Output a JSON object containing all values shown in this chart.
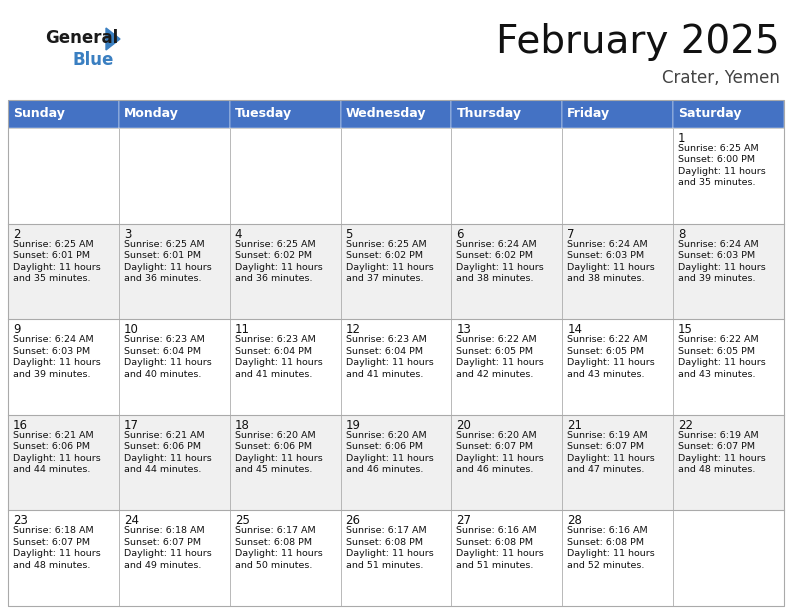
{
  "title": "February 2025",
  "subtitle": "Crater, Yemen",
  "header_color": "#4472C4",
  "header_text_color": "#FFFFFF",
  "background_color": "#FFFFFF",
  "alt_row_color": "#F0F0F0",
  "white_row_color": "#FFFFFF",
  "border_color": "#AAAAAA",
  "days_of_week": [
    "Sunday",
    "Monday",
    "Tuesday",
    "Wednesday",
    "Thursday",
    "Friday",
    "Saturday"
  ],
  "cell_data": [
    [
      "",
      "",
      "",
      "",
      "",
      "",
      "1\nSunrise: 6:25 AM\nSunset: 6:00 PM\nDaylight: 11 hours\nand 35 minutes."
    ],
    [
      "2\nSunrise: 6:25 AM\nSunset: 6:01 PM\nDaylight: 11 hours\nand 35 minutes.",
      "3\nSunrise: 6:25 AM\nSunset: 6:01 PM\nDaylight: 11 hours\nand 36 minutes.",
      "4\nSunrise: 6:25 AM\nSunset: 6:02 PM\nDaylight: 11 hours\nand 36 minutes.",
      "5\nSunrise: 6:25 AM\nSunset: 6:02 PM\nDaylight: 11 hours\nand 37 minutes.",
      "6\nSunrise: 6:24 AM\nSunset: 6:02 PM\nDaylight: 11 hours\nand 38 minutes.",
      "7\nSunrise: 6:24 AM\nSunset: 6:03 PM\nDaylight: 11 hours\nand 38 minutes.",
      "8\nSunrise: 6:24 AM\nSunset: 6:03 PM\nDaylight: 11 hours\nand 39 minutes."
    ],
    [
      "9\nSunrise: 6:24 AM\nSunset: 6:03 PM\nDaylight: 11 hours\nand 39 minutes.",
      "10\nSunrise: 6:23 AM\nSunset: 6:04 PM\nDaylight: 11 hours\nand 40 minutes.",
      "11\nSunrise: 6:23 AM\nSunset: 6:04 PM\nDaylight: 11 hours\nand 41 minutes.",
      "12\nSunrise: 6:23 AM\nSunset: 6:04 PM\nDaylight: 11 hours\nand 41 minutes.",
      "13\nSunrise: 6:22 AM\nSunset: 6:05 PM\nDaylight: 11 hours\nand 42 minutes.",
      "14\nSunrise: 6:22 AM\nSunset: 6:05 PM\nDaylight: 11 hours\nand 43 minutes.",
      "15\nSunrise: 6:22 AM\nSunset: 6:05 PM\nDaylight: 11 hours\nand 43 minutes."
    ],
    [
      "16\nSunrise: 6:21 AM\nSunset: 6:06 PM\nDaylight: 11 hours\nand 44 minutes.",
      "17\nSunrise: 6:21 AM\nSunset: 6:06 PM\nDaylight: 11 hours\nand 44 minutes.",
      "18\nSunrise: 6:20 AM\nSunset: 6:06 PM\nDaylight: 11 hours\nand 45 minutes.",
      "19\nSunrise: 6:20 AM\nSunset: 6:06 PM\nDaylight: 11 hours\nand 46 minutes.",
      "20\nSunrise: 6:20 AM\nSunset: 6:07 PM\nDaylight: 11 hours\nand 46 minutes.",
      "21\nSunrise: 6:19 AM\nSunset: 6:07 PM\nDaylight: 11 hours\nand 47 minutes.",
      "22\nSunrise: 6:19 AM\nSunset: 6:07 PM\nDaylight: 11 hours\nand 48 minutes."
    ],
    [
      "23\nSunrise: 6:18 AM\nSunset: 6:07 PM\nDaylight: 11 hours\nand 48 minutes.",
      "24\nSunrise: 6:18 AM\nSunset: 6:07 PM\nDaylight: 11 hours\nand 49 minutes.",
      "25\nSunrise: 6:17 AM\nSunset: 6:08 PM\nDaylight: 11 hours\nand 50 minutes.",
      "26\nSunrise: 6:17 AM\nSunset: 6:08 PM\nDaylight: 11 hours\nand 51 minutes.",
      "27\nSunrise: 6:16 AM\nSunset: 6:08 PM\nDaylight: 11 hours\nand 51 minutes.",
      "28\nSunrise: 6:16 AM\nSunset: 6:08 PM\nDaylight: 11 hours\nand 52 minutes.",
      ""
    ]
  ],
  "logo_color_general": "#1A1A1A",
  "logo_color_blue": "#3A7FC1",
  "title_fontsize": 28,
  "subtitle_fontsize": 12,
  "header_fontsize": 9,
  "cell_day_fontsize": 8.5,
  "cell_text_fontsize": 6.8
}
